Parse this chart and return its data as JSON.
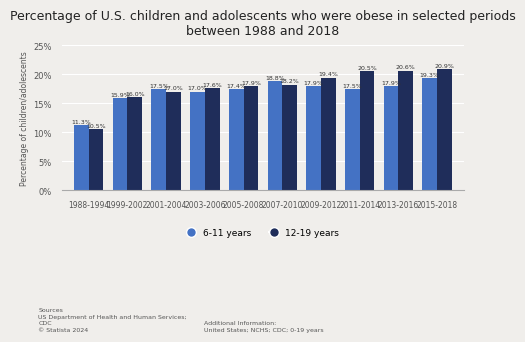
{
  "title": "Percentage of U.S. children and adolescents who were obese in selected periods\nbetween 1988 and 2018",
  "categories": [
    "1988-1994",
    "1999-2002",
    "2001-2004",
    "2003-2006",
    "2005-2008",
    "2007-2010",
    "2009-2012",
    "2011-2014",
    "2013-2016",
    "2015-2018"
  ],
  "series_6_11": [
    11.3,
    15.9,
    17.5,
    17.0,
    17.4,
    18.8,
    17.9,
    17.5,
    17.9,
    19.3
  ],
  "series_12_19": [
    10.5,
    16.0,
    17.0,
    17.6,
    17.9,
    18.2,
    19.4,
    20.5,
    20.6,
    20.9
  ],
  "color_6_11": "#4472C4",
  "color_12_19": "#1F2D5A",
  "ylabel": "Percentage of children/adolescents",
  "ylim": [
    0,
    25
  ],
  "yticks": [
    0,
    5,
    10,
    15,
    20,
    25
  ],
  "ytick_labels": [
    "0%",
    "5%",
    "10%",
    "15%",
    "20%",
    "25%"
  ],
  "legend_6_11": "6-11 years",
  "legend_12_19": "12-19 years",
  "background_color": "#f0eeeb",
  "sources_text": "Sources\nUS Department of Health and Human Services;\nCDC\n© Statista 2024",
  "additional_text": "Additional Information:\nUnited States; NCHS; CDC; 0-19 years",
  "title_fontsize": 9,
  "label_fontsize": 5.5,
  "bar_width": 0.38,
  "grid_color": "#ffffff"
}
